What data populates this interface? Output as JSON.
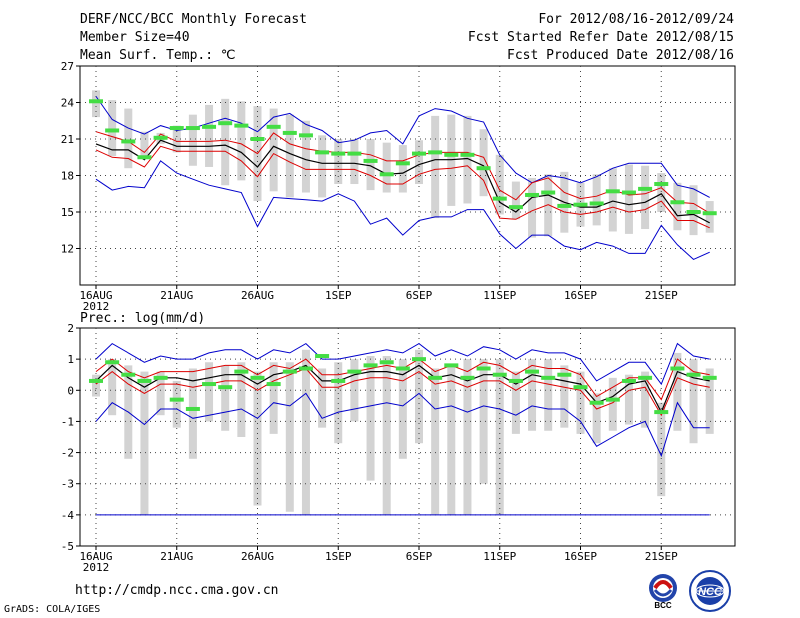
{
  "header": {
    "title": "DERF/NCC/BCC Monthly Forecast",
    "member_size": "Member Size=40",
    "variable": "Mean Surf. Temp.: ℃",
    "period": "For 2012/08/16-2012/09/24",
    "fcst_started": "Fcst Started Refer Date 2012/08/15",
    "fcst_produced": "Fcst Produced Date 2012/08/16"
  },
  "footer": {
    "url": "http://cmdp.ncc.cma.gov.cn",
    "credit": "GrADS: COLA/IGES",
    "logo_left_text": "BCC",
    "logo_right_text": "NCC"
  },
  "colors": {
    "ensemble_bar": "#d3d3d3",
    "median_tick": "#44dd44",
    "mean_line": "#000000",
    "std_band": "#dd0000",
    "minmax_line": "#0000cc",
    "grid": "#444444"
  },
  "chart_data": [
    {
      "type": "box-line",
      "title": "Mean Surf. Temp.: ℃",
      "x_tick_labels": [
        "16AUG",
        "21AUG",
        "26AUG",
        "1SEP",
        "6SEP",
        "11SEP",
        "16SEP",
        "21SEP"
      ],
      "x_tick_index": [
        0,
        5,
        10,
        15,
        20,
        25,
        30,
        35
      ],
      "x_sublabel": "2012",
      "ylim": [
        9,
        27
      ],
      "y_ticks": [
        12,
        15,
        18,
        21,
        24,
        27
      ],
      "grid": true,
      "series": [
        {
          "name": "max",
          "values": [
            24.5,
            22.6,
            21.9,
            21.4,
            22.1,
            21.7,
            21.9,
            22.3,
            22.7,
            22.3,
            21.6,
            22.8,
            23.1,
            22.2,
            21.7,
            20.7,
            20.9,
            21.5,
            21.7,
            20.6,
            22.9,
            23.5,
            23.3,
            22.7,
            22.4,
            19.7,
            18.2,
            17.4,
            18.0,
            17.8,
            17.4,
            17.9,
            18.6,
            19.0,
            19.0,
            19.0,
            17.2,
            16.9,
            16.2
          ]
        },
        {
          "name": "mean_plus_sd",
          "values": [
            21.6,
            21.2,
            20.8,
            19.9,
            21.4,
            20.8,
            20.8,
            20.8,
            20.9,
            20.6,
            19.8,
            21.5,
            20.6,
            20.2,
            20.0,
            19.9,
            19.9,
            19.7,
            19.2,
            19.2,
            19.7,
            19.9,
            19.9,
            19.9,
            19.5,
            16.8,
            16.0,
            17.4,
            17.8,
            16.6,
            16.1,
            16.3,
            16.8,
            16.4,
            16.5,
            17.0,
            15.8,
            15.7,
            14.9
          ]
        },
        {
          "name": "mean",
          "values": [
            20.6,
            20.1,
            20.1,
            19.3,
            20.9,
            20.4,
            20.4,
            20.4,
            20.5,
            19.9,
            18.7,
            20.4,
            19.8,
            19.3,
            19.0,
            19.0,
            19.0,
            18.8,
            18.1,
            18.2,
            18.9,
            19.3,
            19.3,
            19.4,
            18.8,
            15.8,
            15.0,
            16.2,
            16.4,
            15.8,
            15.4,
            15.4,
            15.9,
            15.6,
            15.8,
            16.5,
            14.7,
            14.8,
            14.1
          ]
        },
        {
          "name": "mean_minus_sd",
          "values": [
            20.1,
            19.5,
            19.4,
            18.7,
            20.4,
            20.0,
            20.0,
            20.0,
            20.0,
            19.2,
            17.9,
            19.8,
            19.1,
            18.5,
            18.5,
            18.5,
            18.5,
            18.0,
            17.3,
            17.3,
            18.1,
            18.5,
            18.6,
            18.8,
            17.6,
            14.5,
            14.4,
            15.1,
            15.6,
            15.0,
            14.8,
            15.0,
            15.4,
            15.0,
            15.2,
            15.9,
            14.3,
            14.3,
            13.7
          ]
        },
        {
          "name": "min",
          "values": [
            17.7,
            16.8,
            17.1,
            17.0,
            19.2,
            18.2,
            17.7,
            17.2,
            16.9,
            16.6,
            13.8,
            16.2,
            16.1,
            16.0,
            15.9,
            16.5,
            15.9,
            14.0,
            14.5,
            13.1,
            14.3,
            14.6,
            14.6,
            15.2,
            15.2,
            13.2,
            12.0,
            13.1,
            13.1,
            12.2,
            11.9,
            12.5,
            12.2,
            11.6,
            11.6,
            13.9,
            12.3,
            11.1,
            11.7
          ]
        },
        {
          "name": "ens_upper",
          "values": [
            25.0,
            24.2,
            23.5,
            21.6,
            21.5,
            22.1,
            23.0,
            23.8,
            24.3,
            24.1,
            23.7,
            23.5,
            23.0,
            22.5,
            21.3,
            21.0,
            21.0,
            21.0,
            20.7,
            20.5,
            20.9,
            22.9,
            23.0,
            22.9,
            21.8,
            19.7,
            17.5,
            17.8,
            18.1,
            18.3,
            17.4,
            18.1,
            18.6,
            18.9,
            18.8,
            18.2,
            17.4,
            17.2,
            15.9
          ]
        },
        {
          "name": "ens_lower",
          "values": [
            22.8,
            19.6,
            18.6,
            19.6,
            20.6,
            19.9,
            18.8,
            18.7,
            17.2,
            17.6,
            15.9,
            16.7,
            16.2,
            16.6,
            16.2,
            17.3,
            17.3,
            16.8,
            16.6,
            16.6,
            17.3,
            14.5,
            15.5,
            15.7,
            16.3,
            14.8,
            14.4,
            12.9,
            13.0,
            13.3,
            13.8,
            13.9,
            13.4,
            13.2,
            13.6,
            15.0,
            13.5,
            13.1,
            13.3
          ]
        },
        {
          "name": "median",
          "values": [
            24.1,
            21.7,
            20.8,
            19.5,
            21.1,
            21.9,
            21.9,
            22.0,
            22.3,
            22.1,
            21.0,
            22.0,
            21.5,
            21.3,
            19.9,
            19.8,
            19.8,
            19.2,
            18.1,
            19.0,
            19.8,
            19.9,
            19.7,
            19.7,
            18.6,
            16.1,
            15.4,
            16.4,
            16.6,
            15.5,
            15.6,
            15.7,
            16.7,
            16.6,
            16.9,
            17.3,
            15.8,
            15.0,
            14.9
          ]
        }
      ]
    },
    {
      "type": "box-line",
      "title": "Prec.: log(mm/d)",
      "x_tick_labels": [
        "16AUG",
        "21AUG",
        "26AUG",
        "1SEP",
        "6SEP",
        "11SEP",
        "16SEP",
        "21SEP"
      ],
      "x_tick_index": [
        0,
        5,
        10,
        15,
        20,
        25,
        30,
        35
      ],
      "x_sublabel": "2012",
      "ylim": [
        -5,
        2
      ],
      "y_ticks": [
        -5,
        -4,
        -3,
        -2,
        -1,
        0,
        1,
        2
      ],
      "grid": true,
      "series": [
        {
          "name": "max",
          "values": [
            1.0,
            1.5,
            1.2,
            0.9,
            1.1,
            1.0,
            1.0,
            1.2,
            1.3,
            1.3,
            1.0,
            1.3,
            1.2,
            1.5,
            1.0,
            1.0,
            1.1,
            1.2,
            1.3,
            1.2,
            1.5,
            1.1,
            1.3,
            1.1,
            1.4,
            1.3,
            1.0,
            1.3,
            1.2,
            1.2,
            1.0,
            0.3,
            0.6,
            0.9,
            0.9,
            0.2,
            1.5,
            1.1,
            1.0
          ]
        },
        {
          "name": "mean_plus_sd",
          "values": [
            0.6,
            1.0,
            0.6,
            0.4,
            0.6,
            0.6,
            0.6,
            0.7,
            0.8,
            0.8,
            0.5,
            0.8,
            0.7,
            1.0,
            0.5,
            0.5,
            0.6,
            0.7,
            0.8,
            0.7,
            1.0,
            0.6,
            0.8,
            0.6,
            0.9,
            0.8,
            0.5,
            0.8,
            0.7,
            0.7,
            0.5,
            -0.2,
            0.1,
            0.4,
            0.4,
            -0.3,
            1.0,
            0.6,
            0.5
          ]
        },
        {
          "name": "mean",
          "values": [
            0.3,
            0.8,
            0.4,
            0.1,
            0.4,
            0.4,
            0.3,
            0.4,
            0.5,
            0.5,
            0.2,
            0.5,
            0.6,
            0.8,
            0.3,
            0.3,
            0.5,
            0.6,
            0.6,
            0.5,
            0.8,
            0.4,
            0.5,
            0.3,
            0.5,
            0.5,
            0.2,
            0.5,
            0.4,
            0.3,
            0.2,
            -0.4,
            -0.2,
            0.2,
            0.3,
            -0.7,
            0.6,
            0.4,
            0.3
          ]
        },
        {
          "name": "mean_minus_sd",
          "values": [
            0.2,
            0.6,
            0.2,
            -0.1,
            0.2,
            0.2,
            0.1,
            0.2,
            0.3,
            0.3,
            0.0,
            0.3,
            0.5,
            0.7,
            0.1,
            0.1,
            0.3,
            0.4,
            0.4,
            0.3,
            0.6,
            0.2,
            0.3,
            0.1,
            0.3,
            0.3,
            0.0,
            0.3,
            0.2,
            0.1,
            0.0,
            -0.6,
            -0.4,
            0.0,
            0.1,
            -0.8,
            0.4,
            0.2,
            0.1
          ]
        },
        {
          "name": "min",
          "values": [
            -1.0,
            -0.4,
            -0.7,
            -1.1,
            -0.6,
            -0.6,
            -0.9,
            -0.8,
            -0.7,
            -0.6,
            -0.9,
            -0.4,
            -0.5,
            -0.1,
            -0.9,
            -0.7,
            -0.6,
            -0.5,
            -0.4,
            -0.5,
            -0.1,
            -0.6,
            -0.5,
            -0.7,
            -0.5,
            -0.6,
            -0.8,
            -0.5,
            -0.6,
            -0.6,
            -1.0,
            -1.8,
            -1.5,
            -1.2,
            -1.0,
            -2.1,
            -0.4,
            -1.2,
            -1.2
          ]
        },
        {
          "name": "floor",
          "values": [
            -4.0,
            -4.0,
            -4.0,
            -4.0,
            -4.0,
            -4.0,
            -4.0,
            -4.0,
            -4.0,
            -4.0,
            -4.0,
            -4.0,
            -4.0,
            -4.0,
            -4.0,
            -4.0,
            -4.0,
            -4.0,
            -4.0,
            -4.0,
            -4.0,
            -4.0,
            -4.0,
            -4.0,
            -4.0,
            -4.0,
            -4.0,
            -4.0,
            -4.0,
            -4.0,
            -4.0,
            -4.0,
            -4.0,
            -4.0,
            -4.0,
            -4.0,
            -4.0,
            -4.0,
            -4.0
          ]
        },
        {
          "name": "ens_upper",
          "values": [
            0.5,
            1.0,
            0.8,
            0.6,
            0.6,
            0.3,
            0.7,
            0.9,
            0.8,
            0.9,
            0.6,
            0.9,
            0.9,
            1.3,
            0.7,
            0.9,
            1.0,
            1.1,
            1.1,
            1.0,
            1.3,
            0.7,
            0.8,
            1.0,
            1.0,
            1.0,
            0.6,
            1.0,
            1.0,
            0.8,
            0.6,
            -0.1,
            0.4,
            0.5,
            0.6,
            -0.4,
            1.2,
            1.0,
            0.7
          ]
        },
        {
          "name": "ens_lower",
          "values": [
            -0.2,
            -0.8,
            -2.2,
            -4.0,
            -0.8,
            -1.2,
            -2.2,
            -1.0,
            -1.3,
            -1.5,
            -3.7,
            -1.4,
            -3.9,
            -4.0,
            -1.2,
            -1.7,
            -1.0,
            -2.9,
            -4.0,
            -2.2,
            -1.7,
            -4.0,
            -4.0,
            -4.0,
            -3.0,
            -4.0,
            -1.4,
            -1.3,
            -1.3,
            -1.2,
            -1.4,
            -1.7,
            -1.3,
            -1.1,
            -1.2,
            -3.4,
            -1.3,
            -1.7,
            -1.4
          ]
        },
        {
          "name": "median",
          "values": [
            0.3,
            0.9,
            0.5,
            0.3,
            0.4,
            -0.3,
            -0.6,
            0.2,
            0.1,
            0.6,
            0.4,
            0.2,
            0.6,
            0.7,
            1.1,
            0.3,
            0.6,
            0.8,
            0.9,
            0.7,
            1.0,
            0.4,
            0.8,
            0.4,
            0.7,
            0.5,
            0.3,
            0.6,
            0.4,
            0.5,
            0.1,
            -0.4,
            -0.3,
            0.3,
            0.4,
            -0.7,
            0.7,
            0.5,
            0.4
          ]
        }
      ]
    }
  ]
}
